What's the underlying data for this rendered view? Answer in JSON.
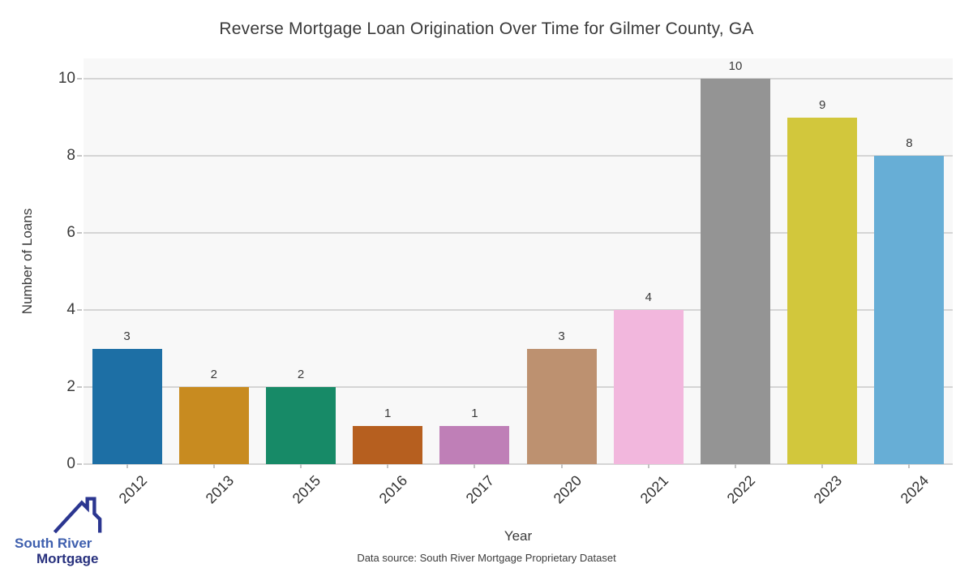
{
  "chart_data": {
    "type": "bar",
    "title": "Reverse Mortgage Loan Origination Over Time for Gilmer County, GA",
    "xlabel": "Year",
    "ylabel": "Number of Loans",
    "categories": [
      "2012",
      "2013",
      "2015",
      "2016",
      "2017",
      "2020",
      "2021",
      "2022",
      "2023",
      "2024"
    ],
    "values": [
      3,
      2,
      2,
      1,
      1,
      3,
      4,
      10,
      9,
      8
    ],
    "bar_colors": [
      "#1d6fa5",
      "#c88b20",
      "#178a67",
      "#b65f1f",
      "#bf7fb7",
      "#bd9170",
      "#f2b7dd",
      "#949494",
      "#d2c73c",
      "#67aed6"
    ],
    "yticks": [
      0,
      2,
      4,
      6,
      8,
      10
    ],
    "ylim": [
      0,
      10.53
    ],
    "grid": "horizontal",
    "legend": "none",
    "plot_background": "#f8f8f8",
    "grid_color": "#d5d5d5"
  },
  "branding": {
    "logo_line1": "South River",
    "logo_line2": "Mortgage",
    "logo_icon": "house-roof-with-chimney",
    "logo_blue": "#3e5fae",
    "logo_navy": "#28317e"
  },
  "footer": {
    "source": "Data source: South River Mortgage Proprietary Dataset"
  }
}
